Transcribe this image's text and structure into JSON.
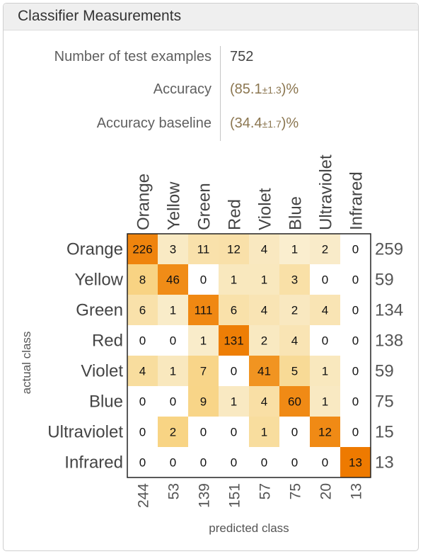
{
  "window": {
    "title": "Classifier Measurements"
  },
  "stats": [
    {
      "label": "Number of test examples",
      "value": "752"
    },
    {
      "label": "Accuracy",
      "open": "(",
      "main": "85.1",
      "err": "±1.3",
      "close": ")%"
    },
    {
      "label": "Accuracy baseline",
      "open": "(",
      "main": "34.4",
      "err": "±1.7",
      "close": ")%"
    }
  ],
  "chart_data": {
    "type": "heatmap",
    "xlabel": "predicted class",
    "ylabel": "actual class",
    "classes": [
      "Orange",
      "Yellow",
      "Green",
      "Red",
      "Violet",
      "Blue",
      "Ultraviolet",
      "Infrared"
    ],
    "matrix": [
      [
        226,
        3,
        11,
        12,
        4,
        1,
        2,
        0
      ],
      [
        8,
        46,
        0,
        1,
        1,
        3,
        0,
        0
      ],
      [
        6,
        1,
        111,
        6,
        4,
        2,
        4,
        0
      ],
      [
        0,
        0,
        1,
        131,
        2,
        4,
        0,
        0
      ],
      [
        4,
        1,
        7,
        0,
        41,
        5,
        1,
        0
      ],
      [
        0,
        0,
        9,
        1,
        4,
        60,
        1,
        0
      ],
      [
        0,
        2,
        0,
        0,
        1,
        0,
        12,
        0
      ],
      [
        0,
        0,
        0,
        0,
        0,
        0,
        0,
        13
      ]
    ],
    "row_totals": [
      "259",
      "59",
      "134",
      "138",
      "59",
      "75",
      "15",
      "13"
    ],
    "col_totals": [
      "244",
      "53",
      "139",
      "151",
      "57",
      "75",
      "20",
      "13"
    ],
    "colors": {
      "high": "#ee7a00",
      "mid": "#f7c862",
      "low": "#faf3df",
      "zero": "#ffffff",
      "frame": "#222222"
    }
  }
}
